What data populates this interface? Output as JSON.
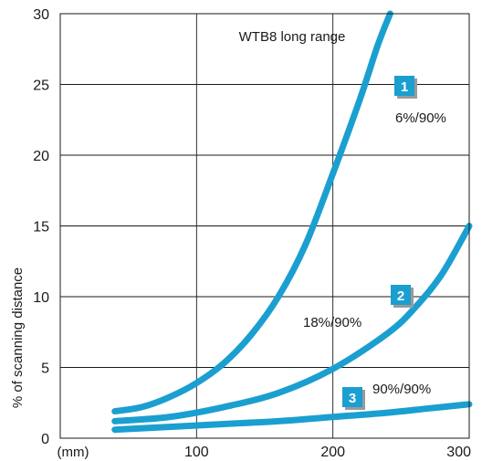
{
  "chart_data": {
    "type": "line",
    "title": "WTB8 long range",
    "xlabel": "(mm)",
    "ylabel": "% of scanning distance",
    "xlim": [
      0,
      300
    ],
    "ylim": [
      0,
      30
    ],
    "x_ticks": [
      100,
      200,
      300
    ],
    "y_ticks": [
      0,
      5,
      10,
      15,
      20,
      25,
      30
    ],
    "grid": true,
    "line_color": "#1a9fd0",
    "badge_color": "#1a9fd0",
    "series": [
      {
        "name": "6%/90%",
        "badge": "1",
        "points": [
          [
            40,
            1.9
          ],
          [
            60,
            2.2
          ],
          [
            80,
            2.9
          ],
          [
            100,
            3.9
          ],
          [
            120,
            5.3
          ],
          [
            140,
            7.3
          ],
          [
            160,
            10.0
          ],
          [
            180,
            13.7
          ],
          [
            200,
            18.7
          ],
          [
            220,
            24.0
          ],
          [
            233,
            27.8
          ],
          [
            242,
            30.0
          ]
        ]
      },
      {
        "name": "18%/90%",
        "badge": "2",
        "points": [
          [
            40,
            1.2
          ],
          [
            80,
            1.5
          ],
          [
            120,
            2.2
          ],
          [
            160,
            3.2
          ],
          [
            200,
            4.9
          ],
          [
            240,
            7.4
          ],
          [
            260,
            9.2
          ],
          [
            280,
            11.6
          ],
          [
            300,
            15.0
          ]
        ]
      },
      {
        "name": "90%/90%",
        "badge": "3",
        "points": [
          [
            40,
            0.6
          ],
          [
            80,
            0.8
          ],
          [
            120,
            1.0
          ],
          [
            160,
            1.2
          ],
          [
            200,
            1.5
          ],
          [
            240,
            1.8
          ],
          [
            270,
            2.1
          ],
          [
            300,
            2.4
          ]
        ]
      }
    ]
  }
}
